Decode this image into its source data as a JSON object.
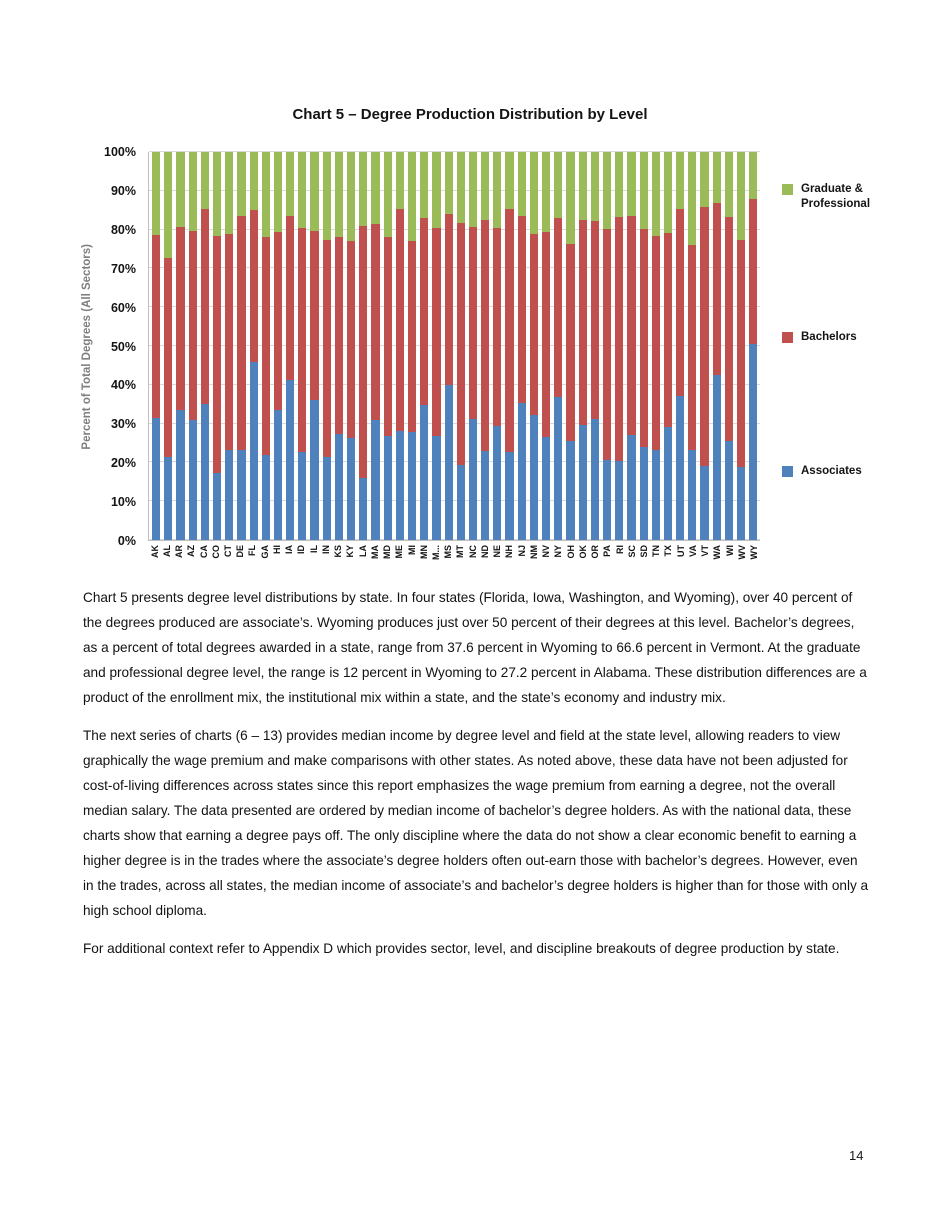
{
  "document": {
    "page_number": "14",
    "paragraphs": [
      "Chart 5 presents degree level distributions by state. In four states (Florida, Iowa, Washington, and Wyoming), over 40 percent of the degrees produced are associate’s. Wyoming produces just over 50 percent of their degrees at this level. Bachelor’s degrees, as a percent of total degrees awarded in a state, range from 37.6 percent in Wyoming to 66.6 percent in Vermont. At the graduate and professional degree level, the range is 12 percent in Wyoming to 27.2 percent in Alabama. These distribution differences are a product of the enrollment mix, the institutional mix within a state, and the state’s economy and industry mix.",
      "The next series of charts (6 – 13) provides median income by degree level and field at the state level, allowing readers to view graphically the wage premium and make comparisons with other states. As noted above, these data have not been adjusted for cost-of-living differences across states since this report emphasizes the wage premium from earning a degree, not the overall median salary. The data presented are ordered by median income of bachelor’s degree holders. As with the national data, these charts show that earning a degree pays off. The only discipline where the data do not show a clear economic benefit to earning a higher degree is in the trades where the associate’s degree holders often out-earn those with bachelor’s degrees. However, even in the trades, across all states, the median income of associate’s and bachelor’s degree holders is higher than for those with only a high school diploma.",
      "For additional context refer to Appendix D which provides sector, level, and discipline breakouts of degree production by state."
    ]
  },
  "chart": {
    "title": "Chart 5 – Degree Production Distribution by Level",
    "y_axis_title": "Percent of Total Degrees (All Sectors)"
  },
  "chart_data": {
    "type": "bar",
    "stacked": true,
    "title": "Chart 5 – Degree Production Distribution by Level",
    "xlabel": "",
    "ylabel": "Percent of Total Degrees (All Sectors)",
    "ylim": [
      0,
      100
    ],
    "grid": true,
    "legend_position": "right",
    "y_ticks": [
      "0%",
      "10%",
      "20%",
      "30%",
      "40%",
      "50%",
      "60%",
      "70%",
      "80%",
      "90%",
      "100%"
    ],
    "categories": [
      "AK",
      "AL",
      "AR",
      "AZ",
      "CA",
      "CO",
      "CT",
      "DE",
      "FL",
      "GA",
      "HI",
      "IA",
      "ID",
      "IL",
      "IN",
      "KS",
      "KY",
      "LA",
      "MA",
      "MD",
      "ME",
      "MI",
      "MN",
      "M...",
      "MS",
      "MT",
      "NC",
      "ND",
      "NE",
      "NH",
      "NJ",
      "NM",
      "NV",
      "NY",
      "OH",
      "OK",
      "OR",
      "PA",
      "RI",
      "SC",
      "SD",
      "TN",
      "TX",
      "UT",
      "VA",
      "VT",
      "WA",
      "WI",
      "WV",
      "WY"
    ],
    "series": [
      {
        "name": "Associates",
        "color": "#4F81BD",
        "values": [
          31.4,
          21.3,
          33.5,
          30.9,
          35.0,
          17.4,
          23.3,
          23.3,
          45.9,
          22.0,
          33.5,
          41.3,
          22.8,
          36.1,
          21.4,
          27.3,
          26.3,
          16.0,
          31.0,
          26.8,
          28.0,
          27.9,
          34.8,
          26.9,
          39.9,
          19.4,
          31.1,
          23.0,
          29.3,
          22.7,
          35.3,
          32.3,
          26.5,
          36.8,
          25.6,
          29.7,
          31.2,
          20.5,
          20.3,
          27.0,
          24.0,
          23.2,
          29.0,
          37.2,
          23.3,
          19.2,
          42.6,
          25.5,
          18.8,
          50.4
        ]
      },
      {
        "name": "Bachelors",
        "color": "#C0504D",
        "values": [
          47.2,
          51.5,
          47.2,
          48.8,
          50.2,
          61.0,
          55.7,
          60.1,
          39.2,
          56.1,
          46.0,
          42.3,
          57.7,
          43.6,
          55.9,
          50.7,
          50.8,
          64.9,
          50.5,
          51.2,
          57.3,
          49.1,
          48.1,
          53.5,
          44.1,
          62.2,
          49.5,
          59.6,
          51.1,
          62.6,
          48.2,
          46.6,
          52.9,
          46.2,
          50.8,
          52.7,
          51.0,
          59.7,
          62.9,
          56.4,
          56.2,
          55.2,
          50.0,
          48.2,
          52.7,
          66.6,
          44.2,
          57.7,
          58.4,
          37.6
        ]
      },
      {
        "name": "Graduate & Professional",
        "color": "#9BBB59",
        "values": [
          21.4,
          27.2,
          19.3,
          20.3,
          14.8,
          21.6,
          21.0,
          16.6,
          14.9,
          21.9,
          20.5,
          16.4,
          19.5,
          20.3,
          22.7,
          22.0,
          22.9,
          19.1,
          18.5,
          22.0,
          14.7,
          23.0,
          17.1,
          19.6,
          16.0,
          18.4,
          19.4,
          17.4,
          19.6,
          14.7,
          16.5,
          21.1,
          20.6,
          17.0,
          23.6,
          17.6,
          17.8,
          19.8,
          16.8,
          16.6,
          19.8,
          21.6,
          21.0,
          14.6,
          24.0,
          14.2,
          13.2,
          16.8,
          22.8,
          12.0
        ]
      }
    ]
  }
}
